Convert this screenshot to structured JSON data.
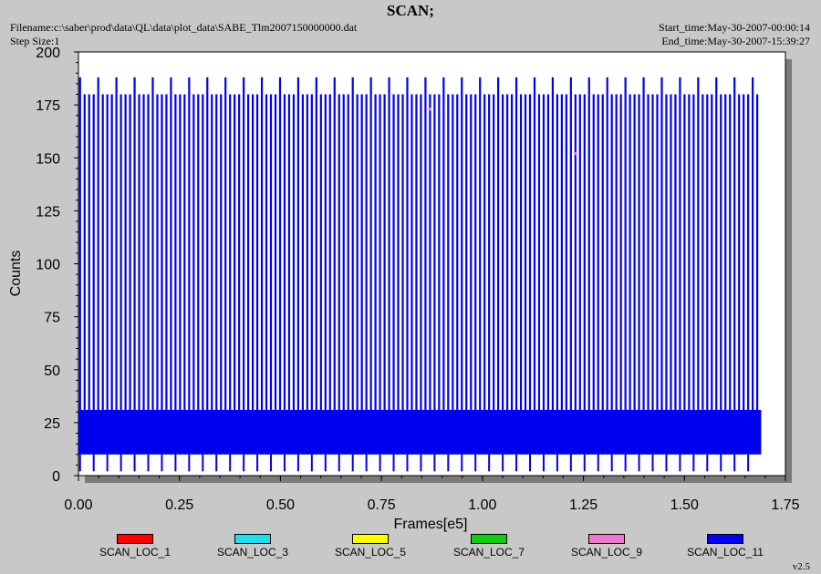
{
  "header": {
    "title": "SCAN;",
    "filename": "Filename:c:\\saber\\prod\\data\\QL\\data\\plot_data\\SABE_Tlm2007150000000.dat",
    "step_size": "Step Size:1",
    "start_time": "Start_time:May-30-2007-00:00:14",
    "end_time": "End_time:May-30-2007-15:39:27"
  },
  "version": "v2.5",
  "colors": {
    "background": "#c8c8c8",
    "plot_area": "#ffffff",
    "shadow": "#7a7a7a",
    "primary_series": "#0000ee"
  },
  "legend": [
    {
      "name": "SCAN_LOC_1",
      "color": "#ff0000"
    },
    {
      "name": "SCAN_LOC_3",
      "color": "#22ddee"
    },
    {
      "name": "SCAN_LOC_5",
      "color": "#ffff00"
    },
    {
      "name": "SCAN_LOC_7",
      "color": "#11cc11"
    },
    {
      "name": "SCAN_LOC_9",
      "color": "#ee77cc"
    },
    {
      "name": "SCAN_LOC_11",
      "color": "#0000ee"
    }
  ],
  "chart_data": {
    "type": "line",
    "title": "SCAN;",
    "xlabel": "Frames[e5]",
    "ylabel": "Counts",
    "xlim": [
      0,
      1.75
    ],
    "ylim": [
      0,
      200
    ],
    "x_ticks": [
      "0.00",
      "0.25",
      "0.50",
      "0.75",
      "1.00",
      "1.25",
      "1.50",
      "1.75"
    ],
    "y_ticks": [
      "0",
      "25",
      "50",
      "75",
      "100",
      "125",
      "150",
      "175",
      "200"
    ],
    "grid": false,
    "legend_position": "bottom",
    "data_x_range": [
      0,
      1.69
    ],
    "description_of_signal": "periodic scan pulses",
    "series": [
      {
        "name": "SCAN_LOC_11",
        "color": "#0000ee",
        "pulse_period": 0.01125,
        "pulse_high": 180,
        "pulse_peak_every_4th": 188,
        "baseline_band": [
          10,
          31
        ],
        "baseline_dips": 3
      },
      {
        "name": "SCAN_LOC_9",
        "color": "#ee77cc",
        "sparse_points": [
          [
            0.87,
            173
          ],
          [
            1.23,
            152
          ]
        ]
      },
      {
        "name": "SCAN_LOC_1",
        "color": "#ff0000",
        "sparse_points": []
      },
      {
        "name": "SCAN_LOC_3",
        "color": "#22ddee",
        "sparse_points": []
      },
      {
        "name": "SCAN_LOC_5",
        "color": "#ffff00",
        "sparse_points": []
      },
      {
        "name": "SCAN_LOC_7",
        "color": "#11cc11",
        "sparse_points": []
      }
    ]
  }
}
